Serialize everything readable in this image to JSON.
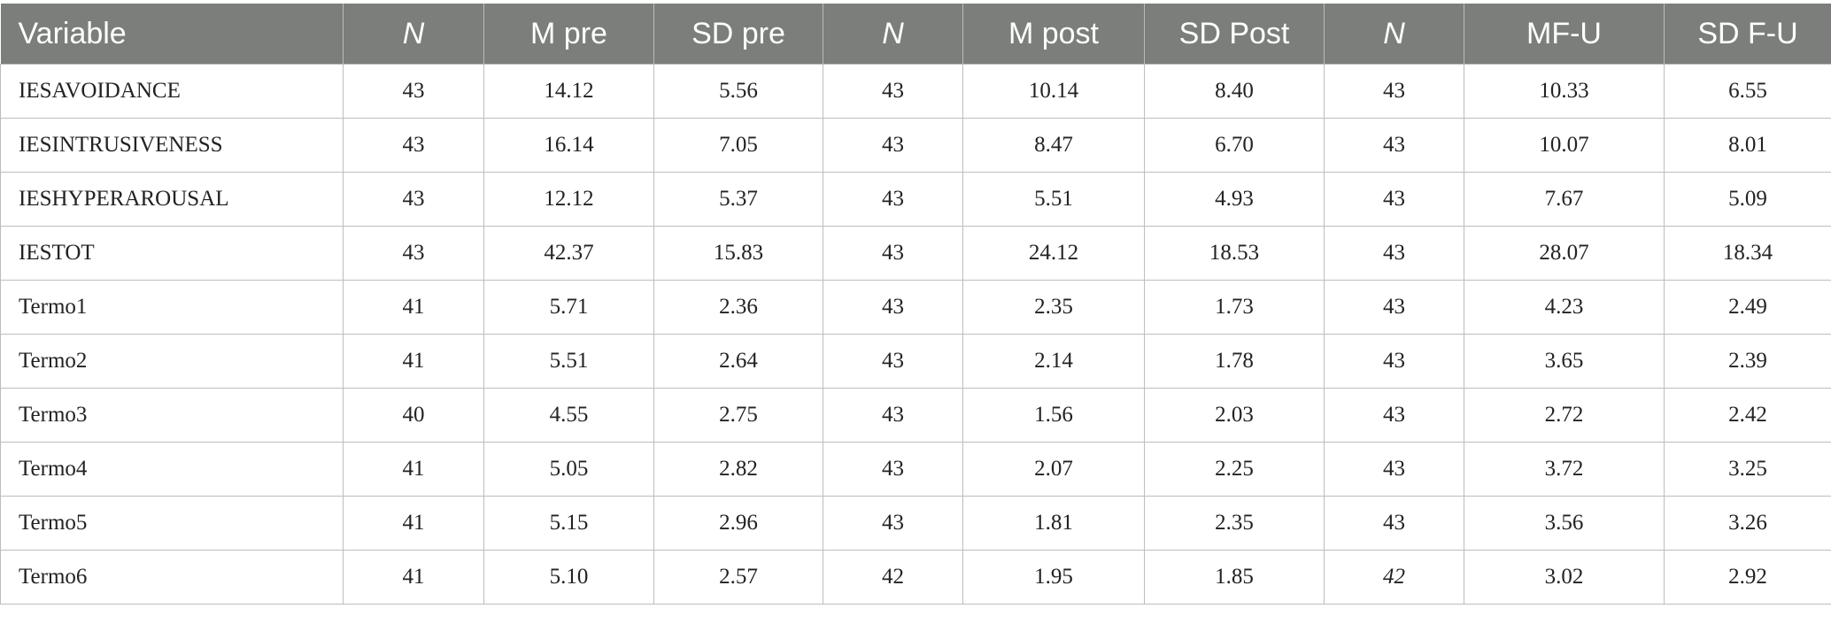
{
  "table": {
    "headers": [
      "Variable",
      "N",
      "M pre",
      "SD pre",
      "N",
      "M post",
      "SD Post",
      "N",
      "MF-U",
      "SD F-U"
    ],
    "rows": [
      [
        "IESAVOIDANCE",
        "43",
        "14.12",
        "5.56",
        "43",
        "10.14",
        "8.40",
        "43",
        "10.33",
        "6.55"
      ],
      [
        "IESINTRUSIVENESS",
        "43",
        "16.14",
        "7.05",
        "43",
        "8.47",
        "6.70",
        "43",
        "10.07",
        "8.01"
      ],
      [
        "IESHYPERAROUSAL",
        "43",
        "12.12",
        "5.37",
        "43",
        "5.51",
        "4.93",
        "43",
        "7.67",
        "5.09"
      ],
      [
        "IESTOT",
        "43",
        "42.37",
        "15.83",
        "43",
        "24.12",
        "18.53",
        "43",
        "28.07",
        "18.34"
      ],
      [
        "Termo1",
        "41",
        "5.71",
        "2.36",
        "43",
        "2.35",
        "1.73",
        "43",
        "4.23",
        "2.49"
      ],
      [
        "Termo2",
        "41",
        "5.51",
        "2.64",
        "43",
        "2.14",
        "1.78",
        "43",
        "3.65",
        "2.39"
      ],
      [
        "Termo3",
        "40",
        "4.55",
        "2.75",
        "43",
        "1.56",
        "2.03",
        "43",
        "2.72",
        "2.42"
      ],
      [
        "Termo4",
        "41",
        "5.05",
        "2.82",
        "43",
        "2.07",
        "2.25",
        "43",
        "3.72",
        "3.25"
      ],
      [
        "Termo5",
        "41",
        "5.15",
        "2.96",
        "43",
        "1.81",
        "2.35",
        "43",
        "3.56",
        "3.26"
      ],
      [
        "Termo6",
        "41",
        "5.10",
        "2.57",
        "42",
        "1.95",
        "1.85",
        "42",
        "3.02",
        "2.92"
      ]
    ]
  }
}
